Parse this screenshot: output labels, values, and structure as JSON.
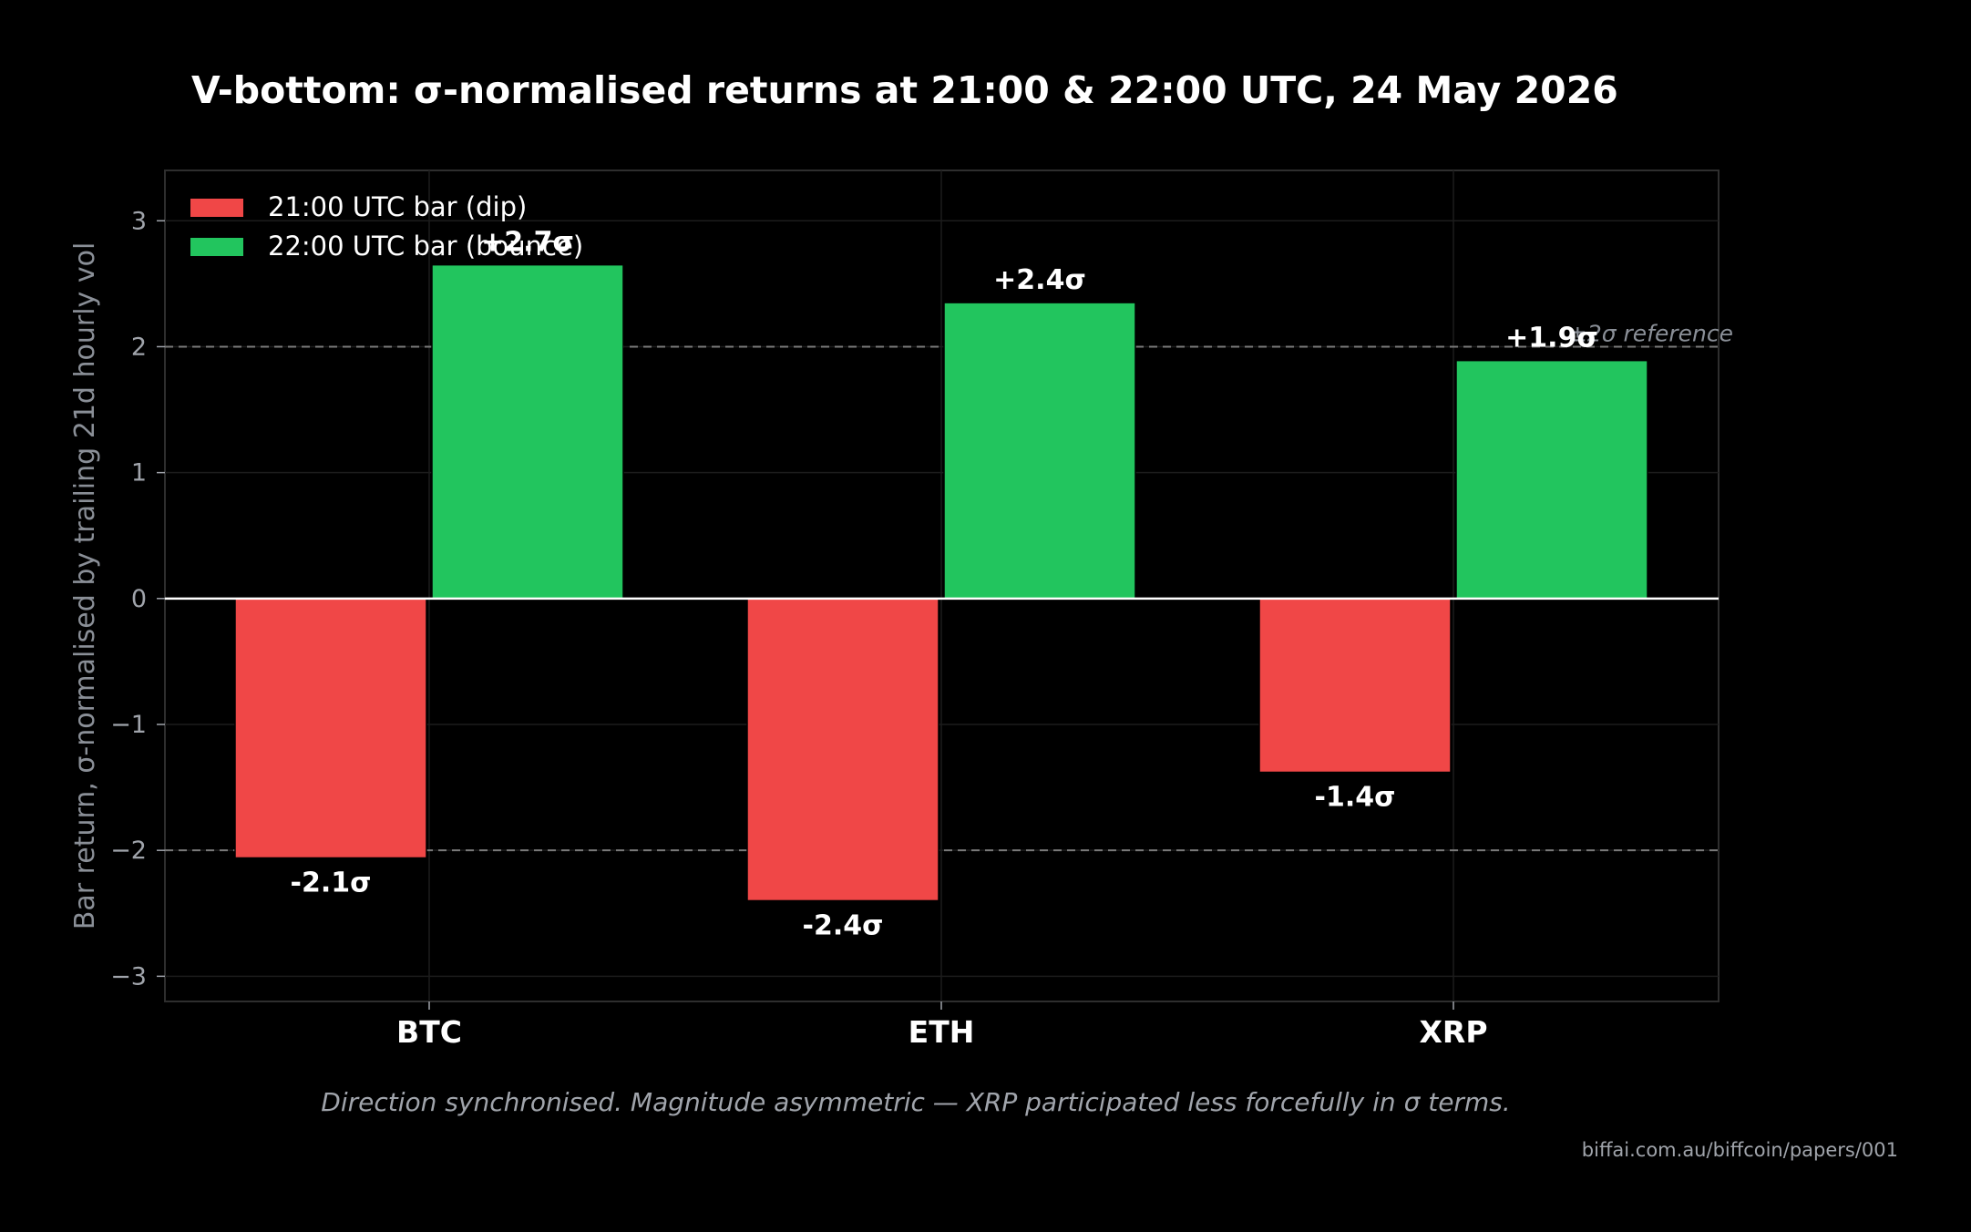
{
  "chart_data": {
    "type": "bar",
    "title": "V-bottom: σ-normalised returns at 21:00 & 22:00 UTC, 24 May 2026",
    "ylabel": "Bar return, σ-normalised by trailing 21d hourly vol",
    "xlabel": "",
    "categories": [
      "BTC",
      "ETH",
      "XRP"
    ],
    "ylim": [
      -3.2,
      3.4
    ],
    "yticks": [
      3,
      2,
      1,
      0,
      -1,
      -2,
      -3
    ],
    "ytick_labels": [
      "3",
      "2",
      "1",
      "0",
      "−1",
      "−2",
      "−3"
    ],
    "grid": true,
    "legend_position": "top-left",
    "series": [
      {
        "name": "21:00 UTC bar (dip)",
        "color": "#f04747",
        "values": [
          -2.06,
          -2.4,
          -1.38
        ],
        "labels": [
          "-2.1σ",
          "-2.4σ",
          "-1.4σ"
        ]
      },
      {
        "name": "22:00 UTC bar (bounce)",
        "color": "#22c55e",
        "values": [
          2.65,
          2.35,
          1.89
        ],
        "labels": [
          "+2.7σ",
          "+2.4σ",
          "+1.9σ"
        ]
      }
    ],
    "reference_lines": [
      {
        "value": 2,
        "label": "±2σ reference"
      },
      {
        "value": -2,
        "label": ""
      }
    ],
    "caption": "Direction synchronised. Magnitude asymmetric — XRP participated less forcefully in σ terms.",
    "source": "biffai.com.au/biffcoin/papers/001"
  }
}
